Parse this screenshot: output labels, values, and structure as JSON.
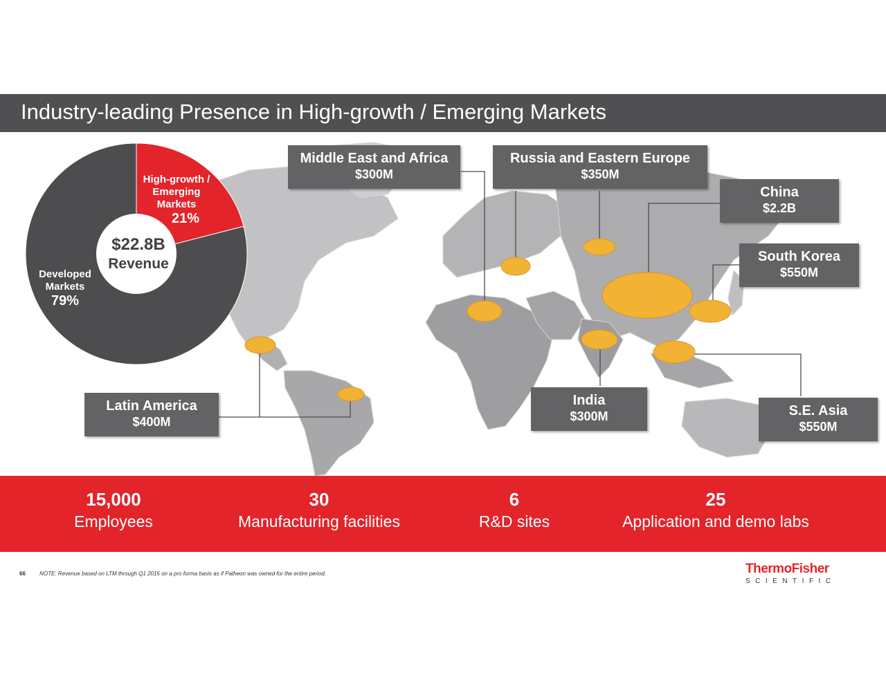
{
  "slide": {
    "title": "Industry-leading Presence in High-growth / Emerging Markets",
    "page_number": "66",
    "note": "NOTE: Revenue based on LTM through Q1 2015 on a pro forma basis as if Patheon was owned for the entire period."
  },
  "logo": {
    "line1": "ThermoFisher",
    "line2": "SCIENTIFIC"
  },
  "colors": {
    "red": "#e3242b",
    "dark_gray": "#505052",
    "callout_gray": "#636366",
    "bubble": "#f2b233"
  },
  "pie": {
    "center_value": "$22.8B",
    "center_label": "Revenue",
    "slices": [
      {
        "label_lines": [
          "High-growth /",
          "Emerging",
          "Markets"
        ],
        "pct_text": "21%",
        "value": 21,
        "color": "#e3242b"
      },
      {
        "label_lines": [
          "Developed",
          "Markets"
        ],
        "pct_text": "79%",
        "value": 79,
        "color": "#4d4d4f"
      }
    ]
  },
  "regions": [
    {
      "name": "Middle East and Africa",
      "value_text": "$300M",
      "value": 300
    },
    {
      "name": "Russia and Eastern Europe",
      "value_text": "$350M",
      "value": 350
    },
    {
      "name": "China",
      "value_text": "$2.2B",
      "value": 2200
    },
    {
      "name": "South Korea",
      "value_text": "$550M",
      "value": 550
    },
    {
      "name": "Latin America",
      "value_text": "$400M",
      "value": 400
    },
    {
      "name": "India",
      "value_text": "$300M",
      "value": 300
    },
    {
      "name": "S.E. Asia",
      "value_text": "$550M",
      "value": 550
    }
  ],
  "stats": [
    {
      "value": "15,000",
      "label": "Employees"
    },
    {
      "value": "30",
      "label": "Manufacturing facilities"
    },
    {
      "value": "6",
      "label": "R&D sites"
    },
    {
      "value": "25",
      "label": "Application and demo labs"
    }
  ],
  "chart_data": {
    "type": "pie",
    "categories": [
      "High-growth / Emerging Markets",
      "Developed Markets"
    ],
    "values": [
      21,
      79
    ],
    "unit": "%",
    "total": "$22.8B"
  }
}
